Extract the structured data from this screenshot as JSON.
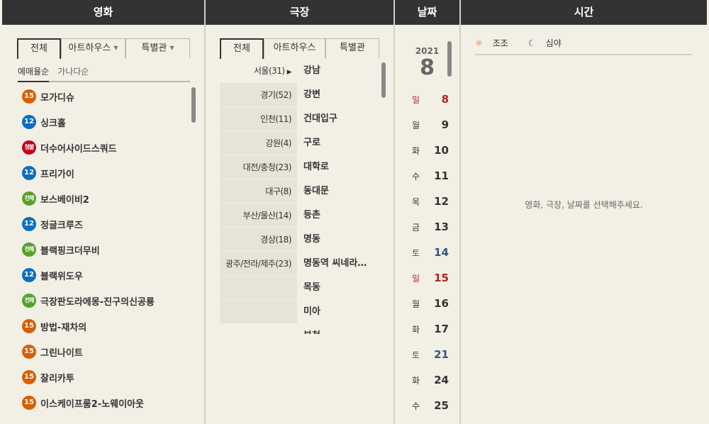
{
  "movie": {
    "header": "영화",
    "tabs": [
      "전체",
      "아트하우스",
      "특별관"
    ],
    "sort": [
      "예매율순",
      "가나다순"
    ],
    "items": [
      {
        "rating": "15",
        "title": "모가디슈"
      },
      {
        "rating": "12",
        "title": "싱크홀"
      },
      {
        "rating": "청불",
        "title": "더수어사이드스쿼드"
      },
      {
        "rating": "12",
        "title": "프리가이"
      },
      {
        "rating": "전체",
        "title": "보스베이비2"
      },
      {
        "rating": "12",
        "title": "정글크루즈"
      },
      {
        "rating": "전체",
        "title": "블랙핑크더무비"
      },
      {
        "rating": "12",
        "title": "블랙위도우"
      },
      {
        "rating": "전체",
        "title": "극장판도라에몽-진구의신공룡"
      },
      {
        "rating": "15",
        "title": "방법-재차의"
      },
      {
        "rating": "15",
        "title": "그린나이트"
      },
      {
        "rating": "15",
        "title": "잘리카투"
      },
      {
        "rating": "15",
        "title": "이스케이프룸2-노웨이아웃"
      }
    ]
  },
  "theater": {
    "header": "극장",
    "tabs": [
      "전체",
      "아트하우스",
      "특별관"
    ],
    "regions": [
      "서울(31)",
      "경기(52)",
      "인천(11)",
      "강원(4)",
      "대전/충청(23)",
      "대구(8)",
      "부산/울산(14)",
      "경상(18)",
      "광주/전라/제주(23)",
      "",
      ""
    ],
    "branches": [
      "강남",
      "강변",
      "건대입구",
      "구로",
      "대학로",
      "동대문",
      "등촌",
      "명동",
      "명동역 씨네라…",
      "목동",
      "미아",
      "부천"
    ]
  },
  "date": {
    "header": "날짜",
    "year": "2021",
    "month": "8",
    "items": [
      {
        "dow": "일",
        "day": "8",
        "type": "sun"
      },
      {
        "dow": "월",
        "day": "9",
        "type": ""
      },
      {
        "dow": "화",
        "day": "10",
        "type": ""
      },
      {
        "dow": "수",
        "day": "11",
        "type": ""
      },
      {
        "dow": "목",
        "day": "12",
        "type": ""
      },
      {
        "dow": "금",
        "day": "13",
        "type": ""
      },
      {
        "dow": "토",
        "day": "14",
        "type": "sat"
      },
      {
        "dow": "일",
        "day": "15",
        "type": "sun"
      },
      {
        "dow": "월",
        "day": "16",
        "type": ""
      },
      {
        "dow": "화",
        "day": "17",
        "type": ""
      },
      {
        "dow": "토",
        "day": "21",
        "type": "sat"
      },
      {
        "dow": "화",
        "day": "24",
        "type": ""
      },
      {
        "dow": "수",
        "day": "25",
        "type": ""
      }
    ]
  },
  "time": {
    "header": "시간",
    "filters": [
      "조조",
      "심야"
    ],
    "placeholder": "영화, 극장, 날짜를 선택해주세요."
  }
}
